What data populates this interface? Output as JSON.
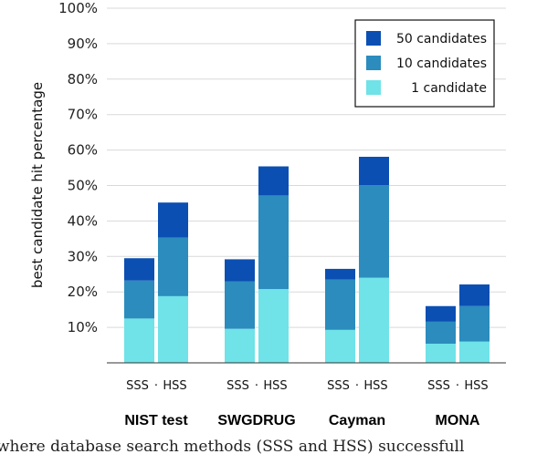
{
  "chart_data": {
    "type": "bar",
    "stacked": true,
    "ylabel": "best candidate hit percentage",
    "ylim": [
      0,
      100
    ],
    "yticks": [
      "10%",
      "20%",
      "30%",
      "40%",
      "50%",
      "60%",
      "70%",
      "80%",
      "90%",
      "100%"
    ],
    "grid": "horizontal",
    "legend": {
      "placement": "top-right",
      "entries": [
        "50 candidates",
        "10 candidates",
        "1 candidate"
      ]
    },
    "colors": {
      "1 candidate": "#6fe3e8",
      "10 candidates": "#2b8cbd",
      "50 candidates": "#0b4fb3"
    },
    "groups": [
      {
        "name": "NIST test",
        "methods": [
          {
            "label": "SSS",
            "c1": 12.5,
            "c10": 23.2,
            "c50": 29.5
          },
          {
            "label": "HSS",
            "c1": 18.8,
            "c10": 35.3,
            "c50": 45.2
          }
        ]
      },
      {
        "name": "SWGDRUG",
        "methods": [
          {
            "label": "SSS",
            "c1": 9.6,
            "c10": 23.0,
            "c50": 29.2
          },
          {
            "label": "HSS",
            "c1": 20.8,
            "c10": 47.2,
            "c50": 55.4
          }
        ]
      },
      {
        "name": "Cayman",
        "methods": [
          {
            "label": "SSS",
            "c1": 9.3,
            "c10": 23.5,
            "c50": 26.5
          },
          {
            "label": "HSS",
            "c1": 24.0,
            "c10": 50.1,
            "c50": 58.1
          }
        ]
      },
      {
        "name": "MONA",
        "methods": [
          {
            "label": "SSS",
            "c1": 5.4,
            "c10": 11.6,
            "c50": 16.0
          },
          {
            "label": "HSS",
            "c1": 6.0,
            "c10": 16.0,
            "c50": 22.1
          }
        ]
      }
    ],
    "method_separator": "·"
  },
  "caption": "where database search methods (SSS and HSS) successfull"
}
